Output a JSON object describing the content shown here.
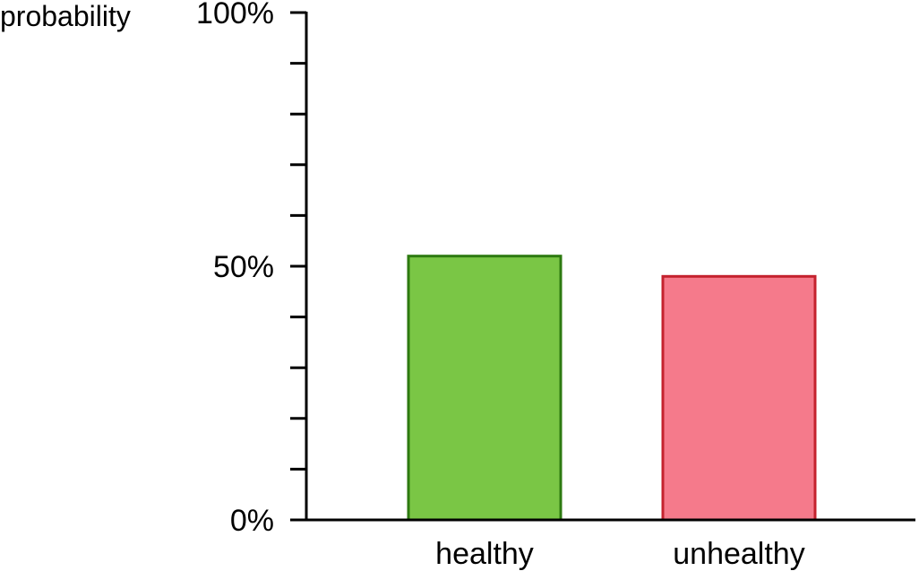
{
  "chart_data": {
    "type": "bar",
    "categories": [
      "healthy",
      "unhealthy"
    ],
    "values": [
      52,
      48
    ],
    "ylabel": "probability",
    "xlabel": "",
    "ylim": [
      0,
      100
    ],
    "major_ticks": [
      {
        "value": 0,
        "label": "0%"
      },
      {
        "value": 50,
        "label": "50%"
      },
      {
        "value": 100,
        "label": "100%"
      }
    ],
    "minor_tick_step": 10,
    "grid": false,
    "colors": {
      "fill": [
        "#7ac645",
        "#f57a8b"
      ],
      "stroke": [
        "#2d7a10",
        "#c4222e"
      ]
    }
  }
}
